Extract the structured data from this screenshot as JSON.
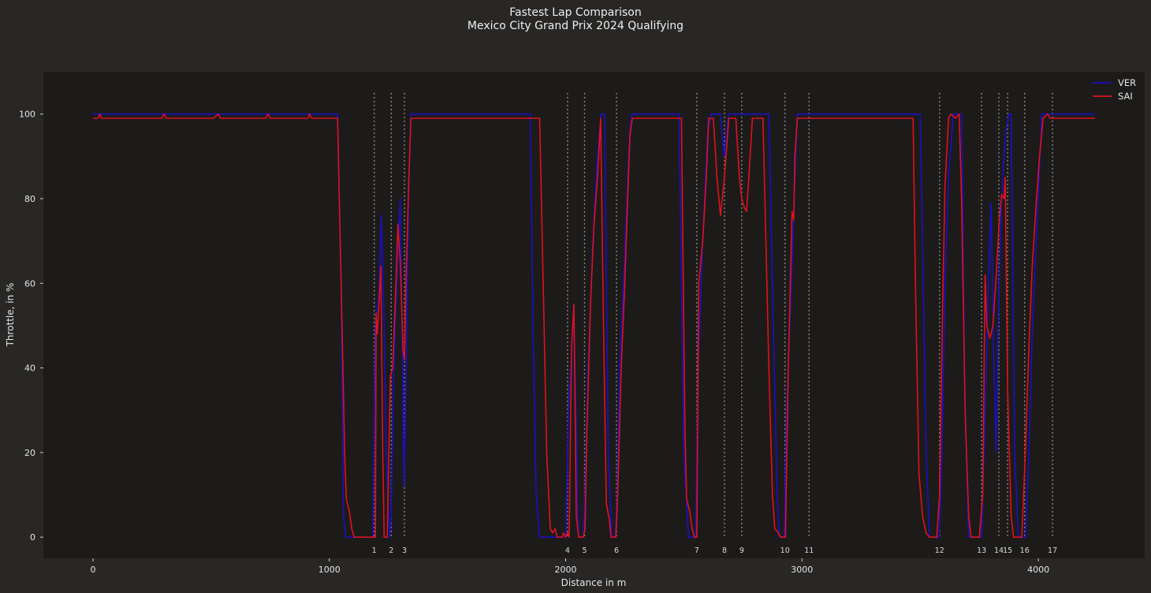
{
  "chart_data": {
    "type": "line",
    "title": "Fastest Lap Comparison",
    "subtitle": "Mexico City Grand Prix 2024 Qualifying",
    "xlabel": "Distance in m",
    "ylabel": "Throttle, in %",
    "xlim": [
      -210,
      4450
    ],
    "ylim": [
      -5,
      110
    ],
    "x_ticks": [
      0,
      1000,
      2000,
      3000,
      4000
    ],
    "y_ticks": [
      0,
      20,
      40,
      60,
      80,
      100
    ],
    "grid": false,
    "legend_position": "top-right",
    "background": "#1c1b1a",
    "figure_background": "#282726",
    "corner_line_color": "#888888",
    "corners": [
      {
        "number": "1",
        "distance": 1190
      },
      {
        "number": "2",
        "distance": 1262
      },
      {
        "number": "3",
        "distance": 1318
      },
      {
        "number": "4",
        "distance": 2008
      },
      {
        "number": "5",
        "distance": 2080
      },
      {
        "number": "6",
        "distance": 2215
      },
      {
        "number": "7",
        "distance": 2555
      },
      {
        "number": "8",
        "distance": 2672
      },
      {
        "number": "9",
        "distance": 2745
      },
      {
        "number": "10",
        "distance": 2928
      },
      {
        "number": "11",
        "distance": 3030
      },
      {
        "number": "12",
        "distance": 3582
      },
      {
        "number": "13",
        "distance": 3760
      },
      {
        "number": "14",
        "distance": 3833
      },
      {
        "number": "15",
        "distance": 3870
      },
      {
        "number": "16",
        "distance": 3942
      },
      {
        "number": "17",
        "distance": 4060
      }
    ],
    "series": [
      {
        "name": "VER",
        "color": "#1a0fc8",
        "points": [
          [
            0,
            100
          ],
          [
            1035,
            100
          ],
          [
            1050,
            60
          ],
          [
            1060,
            5
          ],
          [
            1070,
            0
          ],
          [
            1185,
            0
          ],
          [
            1190,
            30
          ],
          [
            1195,
            50
          ],
          [
            1210,
            58
          ],
          [
            1220,
            76
          ],
          [
            1232,
            50
          ],
          [
            1240,
            20
          ],
          [
            1255,
            0
          ],
          [
            1262,
            5
          ],
          [
            1270,
            35
          ],
          [
            1285,
            60
          ],
          [
            1300,
            80
          ],
          [
            1310,
            40
          ],
          [
            1316,
            12
          ],
          [
            1322,
            30
          ],
          [
            1335,
            80
          ],
          [
            1345,
            100
          ],
          [
            1850,
            100
          ],
          [
            1862,
            50
          ],
          [
            1875,
            10
          ],
          [
            1890,
            0
          ],
          [
            2000,
            0
          ],
          [
            2012,
            30
          ],
          [
            2035,
            55
          ],
          [
            2050,
            10
          ],
          [
            2055,
            0
          ],
          [
            2075,
            0
          ],
          [
            2082,
            10
          ],
          [
            2095,
            40
          ],
          [
            2115,
            70
          ],
          [
            2135,
            90
          ],
          [
            2150,
            100
          ],
          [
            2165,
            100
          ],
          [
            2180,
            20
          ],
          [
            2195,
            0
          ],
          [
            2210,
            0
          ],
          [
            2218,
            10
          ],
          [
            2228,
            40
          ],
          [
            2245,
            60
          ],
          [
            2270,
            95
          ],
          [
            2280,
            100
          ],
          [
            2480,
            100
          ],
          [
            2500,
            20
          ],
          [
            2520,
            0
          ],
          [
            2550,
            0
          ],
          [
            2560,
            40
          ],
          [
            2580,
            70
          ],
          [
            2600,
            95
          ],
          [
            2615,
            100
          ],
          [
            2640,
            100
          ],
          [
            2655,
            100
          ],
          [
            2670,
            90
          ],
          [
            2690,
            100
          ],
          [
            2860,
            100
          ],
          [
            2875,
            60
          ],
          [
            2895,
            10
          ],
          [
            2905,
            0
          ],
          [
            2925,
            0
          ],
          [
            2935,
            30
          ],
          [
            2955,
            60
          ],
          [
            2980,
            100
          ],
          [
            3500,
            100
          ],
          [
            3510,
            70
          ],
          [
            3525,
            20
          ],
          [
            3540,
            0
          ],
          [
            3580,
            0
          ],
          [
            3592,
            20
          ],
          [
            3605,
            60
          ],
          [
            3620,
            85
          ],
          [
            3640,
            100
          ],
          [
            3675,
            100
          ],
          [
            3690,
            30
          ],
          [
            3705,
            0
          ],
          [
            3760,
            0
          ],
          [
            3775,
            30
          ],
          [
            3790,
            62
          ],
          [
            3800,
            79
          ],
          [
            3812,
            40
          ],
          [
            3822,
            20
          ],
          [
            3830,
            50
          ],
          [
            3845,
            80
          ],
          [
            3860,
            95
          ],
          [
            3875,
            100
          ],
          [
            3885,
            100
          ],
          [
            3900,
            20
          ],
          [
            3915,
            0
          ],
          [
            3945,
            0
          ],
          [
            3960,
            20
          ],
          [
            3975,
            50
          ],
          [
            3995,
            75
          ],
          [
            4015,
            100
          ],
          [
            4240,
            100
          ]
        ]
      },
      {
        "name": "SAI",
        "color": "#e0111e",
        "points": [
          [
            0,
            99
          ],
          [
            20,
            99
          ],
          [
            30,
            100
          ],
          [
            35,
            99
          ],
          [
            290,
            99
          ],
          [
            300,
            100
          ],
          [
            310,
            99
          ],
          [
            510,
            99
          ],
          [
            530,
            100
          ],
          [
            540,
            99
          ],
          [
            730,
            99
          ],
          [
            740,
            100
          ],
          [
            750,
            99
          ],
          [
            910,
            99
          ],
          [
            915,
            100
          ],
          [
            925,
            99
          ],
          [
            1035,
            99
          ],
          [
            1050,
            60
          ],
          [
            1065,
            20
          ],
          [
            1072,
            9
          ],
          [
            1085,
            6
          ],
          [
            1095,
            2
          ],
          [
            1105,
            0
          ],
          [
            1195,
            0
          ],
          [
            1198,
            53
          ],
          [
            1203,
            48
          ],
          [
            1210,
            55
          ],
          [
            1218,
            64
          ],
          [
            1226,
            20
          ],
          [
            1232,
            0
          ],
          [
            1245,
            0
          ],
          [
            1258,
            38
          ],
          [
            1268,
            40
          ],
          [
            1282,
            60
          ],
          [
            1290,
            74
          ],
          [
            1300,
            65
          ],
          [
            1312,
            44
          ],
          [
            1318,
            42
          ],
          [
            1324,
            60
          ],
          [
            1335,
            82
          ],
          [
            1345,
            99
          ],
          [
            1890,
            99
          ],
          [
            1905,
            60
          ],
          [
            1920,
            20
          ],
          [
            1935,
            2
          ],
          [
            1945,
            1
          ],
          [
            1955,
            2
          ],
          [
            1965,
            0
          ],
          [
            1985,
            0
          ],
          [
            1990,
            1
          ],
          [
            2000,
            0
          ],
          [
            2008,
            1
          ],
          [
            2015,
            0
          ],
          [
            2025,
            45
          ],
          [
            2035,
            55
          ],
          [
            2045,
            5
          ],
          [
            2055,
            0
          ],
          [
            2075,
            0
          ],
          [
            2082,
            2
          ],
          [
            2090,
            25
          ],
          [
            2105,
            55
          ],
          [
            2120,
            74
          ],
          [
            2135,
            85
          ],
          [
            2148,
            99
          ],
          [
            2160,
            50
          ],
          [
            2172,
            8
          ],
          [
            2185,
            4
          ],
          [
            2192,
            0
          ],
          [
            2212,
            0
          ],
          [
            2220,
            10
          ],
          [
            2235,
            40
          ],
          [
            2250,
            60
          ],
          [
            2262,
            80
          ],
          [
            2272,
            95
          ],
          [
            2282,
            99
          ],
          [
            2490,
            99
          ],
          [
            2505,
            25
          ],
          [
            2512,
            9
          ],
          [
            2525,
            6
          ],
          [
            2535,
            2
          ],
          [
            2545,
            0
          ],
          [
            2555,
            0
          ],
          [
            2563,
            60
          ],
          [
            2580,
            70
          ],
          [
            2595,
            85
          ],
          [
            2605,
            99
          ],
          [
            2625,
            99
          ],
          [
            2640,
            85
          ],
          [
            2655,
            76
          ],
          [
            2672,
            85
          ],
          [
            2690,
            99
          ],
          [
            2720,
            99
          ],
          [
            2735,
            85
          ],
          [
            2745,
            80
          ],
          [
            2755,
            78
          ],
          [
            2765,
            77
          ],
          [
            2775,
            85
          ],
          [
            2790,
            99
          ],
          [
            2835,
            99
          ],
          [
            2860,
            40
          ],
          [
            2875,
            10
          ],
          [
            2885,
            2
          ],
          [
            2900,
            1
          ],
          [
            2910,
            0
          ],
          [
            2920,
            0
          ],
          [
            2930,
            0
          ],
          [
            2942,
            40
          ],
          [
            2958,
            77
          ],
          [
            2965,
            75
          ],
          [
            2970,
            90
          ],
          [
            2980,
            99
          ],
          [
            3025,
            99
          ],
          [
            3470,
            99
          ],
          [
            3480,
            60
          ],
          [
            3495,
            15
          ],
          [
            3510,
            5
          ],
          [
            3525,
            1
          ],
          [
            3540,
            0
          ],
          [
            3570,
            0
          ],
          [
            3582,
            10
          ],
          [
            3595,
            55
          ],
          [
            3605,
            83
          ],
          [
            3620,
            99
          ],
          [
            3630,
            100
          ],
          [
            3650,
            99
          ],
          [
            3665,
            100
          ],
          [
            3675,
            80
          ],
          [
            3690,
            30
          ],
          [
            3705,
            5
          ],
          [
            3715,
            0
          ],
          [
            3750,
            0
          ],
          [
            3765,
            10
          ],
          [
            3775,
            62
          ],
          [
            3782,
            50
          ],
          [
            3795,
            47
          ],
          [
            3808,
            50
          ],
          [
            3820,
            60
          ],
          [
            3835,
            75
          ],
          [
            3845,
            81
          ],
          [
            3855,
            80
          ],
          [
            3860,
            85
          ],
          [
            3870,
            35
          ],
          [
            3885,
            5
          ],
          [
            3895,
            0
          ],
          [
            3930,
            0
          ],
          [
            3945,
            20
          ],
          [
            3960,
            45
          ],
          [
            3975,
            65
          ],
          [
            3990,
            78
          ],
          [
            4005,
            90
          ],
          [
            4020,
            99
          ],
          [
            4040,
            100
          ],
          [
            4050,
            99
          ],
          [
            4240,
            99
          ]
        ]
      }
    ]
  }
}
